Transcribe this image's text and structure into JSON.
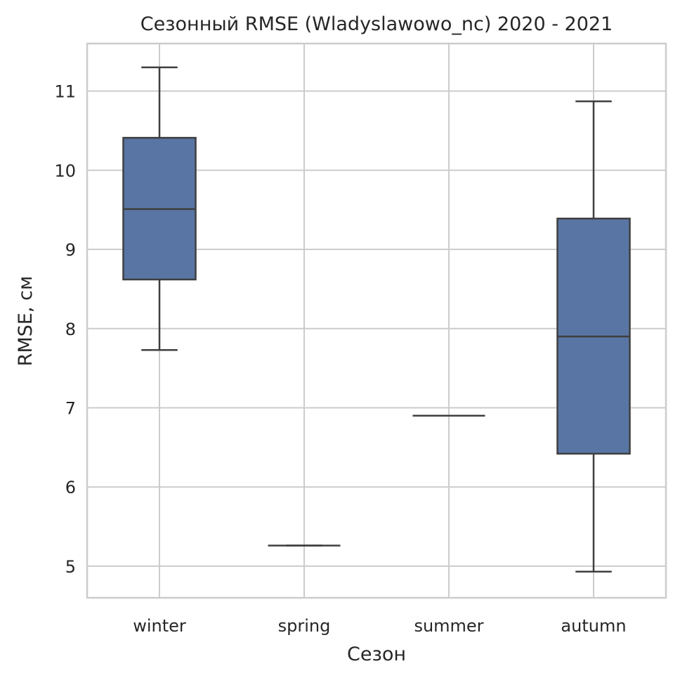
{
  "chart_data": {
    "type": "boxplot",
    "title": "Сезонный RMSE (Wladyslawowo_nc) 2020 - 2021",
    "xlabel": "Сезон",
    "ylabel": "RMSE, см",
    "categories": [
      "winter",
      "spring",
      "summer",
      "autumn"
    ],
    "boxes": [
      {
        "category": "winter",
        "whisker_low": 7.73,
        "q1": 8.62,
        "median": 9.51,
        "q3": 10.41,
        "whisker_high": 11.3
      },
      {
        "category": "spring",
        "whisker_low": 5.26,
        "q1": 5.26,
        "median": 5.26,
        "q3": 5.26,
        "whisker_high": 5.26
      },
      {
        "category": "summer",
        "whisker_low": 6.9,
        "q1": 6.9,
        "median": 6.9,
        "q3": 6.9,
        "whisker_high": 6.9
      },
      {
        "category": "autumn",
        "whisker_low": 4.93,
        "q1": 6.42,
        "median": 7.9,
        "q3": 9.39,
        "whisker_high": 10.87
      }
    ],
    "ylim": [
      4.6,
      11.6
    ],
    "yticks": [
      5,
      6,
      7,
      8,
      9,
      10,
      11
    ],
    "grid": true,
    "colors": {
      "box_fill": "#5975a4",
      "box_edge": "#3f3f3f",
      "grid": "#cccccc",
      "spine": "#cccccc"
    }
  }
}
